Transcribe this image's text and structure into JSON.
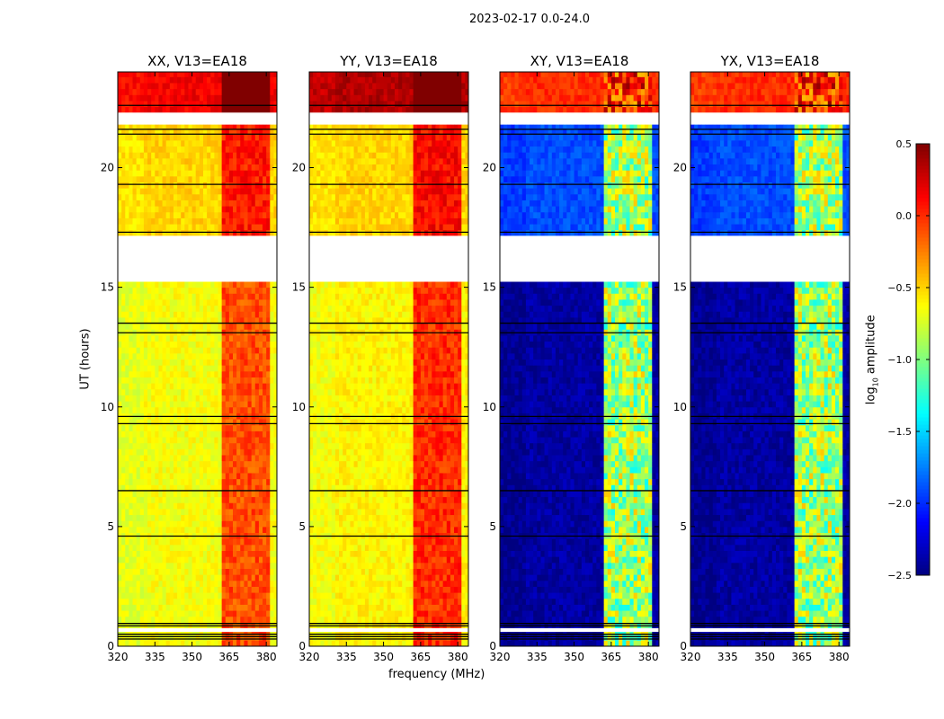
{
  "chart_data": {
    "type": "heatmap",
    "title": "2023-02-17 0.0-24.0",
    "xlabel": "frequency (MHz)",
    "ylabel": "UT (hours)",
    "xlim": [
      320,
      384.3
    ],
    "ylim": [
      0,
      24
    ],
    "xticks": [
      320,
      335,
      350,
      365,
      380
    ],
    "yticks": [
      0,
      5,
      10,
      15,
      20
    ],
    "colorbar": {
      "label": "log10 amplitude",
      "label_main": "log",
      "label_sub": "10",
      "label_rest": " amplitude",
      "vmin": -2.5,
      "vmax": 0.5,
      "ticks": [
        "0.5",
        "0.0",
        "−0.5",
        "−1.0",
        "−1.5",
        "−2.0",
        "−2.5"
      ],
      "tick_values": [
        0.5,
        0,
        -0.5,
        -1,
        -1.5,
        -2,
        -2.5
      ],
      "colormap": "jet"
    },
    "flagged_ranges_hours": [
      [
        15.23,
        17.15
      ],
      [
        21.8,
        22.3
      ],
      [
        0.6,
        0.75
      ]
    ],
    "black_lines_hours": [
      0.3,
      0.4,
      0.5,
      0.85,
      0.95,
      4.6,
      6.5,
      9.3,
      9.6,
      13.1,
      13.5,
      17.3,
      19.3,
      21.4,
      21.6,
      22.6
    ],
    "panels": [
      {
        "title": "XX, V13=EA18",
        "segments": [
          {
            "t": [
              22.3,
              24
            ],
            "v": 0.15
          },
          {
            "t": [
              17.15,
              21.8
            ],
            "v": -0.5
          },
          {
            "t": [
              0,
              15.23
            ],
            "v": -0.65
          }
        ],
        "rfi": {
          "f": [
            362,
            380.5
          ],
          "mode": "add",
          "v": 0.55
        }
      },
      {
        "title": "YY, V13=EA18",
        "segments": [
          {
            "t": [
              22.3,
              24
            ],
            "v": 0.35
          },
          {
            "t": [
              17.15,
              21.8
            ],
            "v": -0.5
          },
          {
            "t": [
              0,
              15.23
            ],
            "v": -0.6
          }
        ],
        "rfi": {
          "f": [
            362,
            380.5
          ],
          "mode": "add",
          "v": 0.6
        }
      },
      {
        "title": "XY, V13=EA18",
        "segments": [
          {
            "t": [
              22.3,
              24
            ],
            "v": 0.0
          },
          {
            "t": [
              17.15,
              21.8
            ],
            "v": -1.9
          },
          {
            "t": [
              0,
              15.23
            ],
            "v": -2.4
          }
        ],
        "rfi": {
          "f": [
            362,
            380.5
          ],
          "mode": "set",
          "v": -0.9
        }
      },
      {
        "title": "YX, V13=EA18",
        "segments": [
          {
            "t": [
              22.3,
              24
            ],
            "v": 0.0
          },
          {
            "t": [
              17.15,
              21.8
            ],
            "v": -1.9
          },
          {
            "t": [
              0,
              15.23
            ],
            "v": -2.4
          }
        ],
        "rfi": {
          "f": [
            362,
            380.5
          ],
          "mode": "set",
          "v": -0.9
        }
      }
    ]
  }
}
